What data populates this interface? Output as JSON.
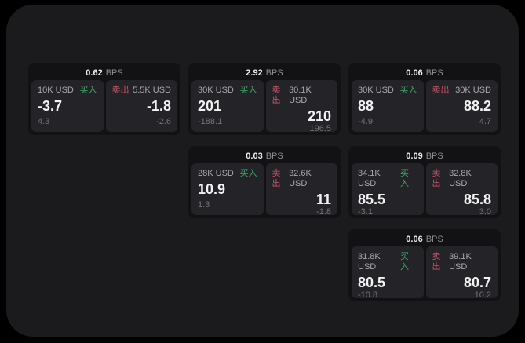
{
  "theme": {
    "page_bg": "#000000",
    "panel_bg": "#1b1b1d",
    "card_bg": "#121214",
    "tile_bg": "#242428",
    "buy_color": "#3fa768",
    "sell_color": "#c2566a"
  },
  "labels": {
    "bps_unit": "BPS",
    "buy": "买入",
    "sell": "卖出"
  },
  "cards": [
    {
      "bps": "0.62",
      "buy": {
        "amount": "10K USD",
        "price": "-3.7",
        "delta": "4.3"
      },
      "sell": {
        "amount": "5.5K USD",
        "price": "-1.8",
        "delta": "-2.6"
      }
    },
    {
      "bps": "2.92",
      "buy": {
        "amount": "30K USD",
        "price": "201",
        "delta": "-188.1"
      },
      "sell": {
        "amount": "30.1K USD",
        "price": "210",
        "delta": "196.5"
      }
    },
    {
      "bps": "0.06",
      "buy": {
        "amount": "30K USD",
        "price": "88",
        "delta": "-4.9"
      },
      "sell": {
        "amount": "30K USD",
        "price": "88.2",
        "delta": "4.7"
      }
    },
    {
      "bps": "0.03",
      "buy": {
        "amount": "28K USD",
        "price": "10.9",
        "delta": "1.3"
      },
      "sell": {
        "amount": "32.6K USD",
        "price": "11",
        "delta": "-1.8"
      }
    },
    {
      "bps": "0.09",
      "buy": {
        "amount": "34.1K USD",
        "price": "85.5",
        "delta": "-3.1"
      },
      "sell": {
        "amount": "32.8K USD",
        "price": "85.8",
        "delta": "3.0"
      }
    },
    {
      "bps": "0.06",
      "buy": {
        "amount": "31.8K USD",
        "price": "80.5",
        "delta": "-10.8"
      },
      "sell": {
        "amount": "39.1K USD",
        "price": "80.7",
        "delta": "10.2"
      }
    }
  ]
}
